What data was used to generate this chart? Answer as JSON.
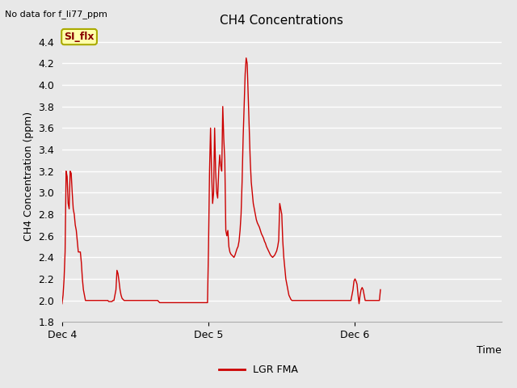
{
  "title": "CH4 Concentrations",
  "ylabel": "CH4 Concentration (ppm)",
  "xlabel": "Time",
  "top_left_text": "No data for f_li77_ppm",
  "legend_label": "LGR FMA",
  "line_color": "#cc0000",
  "background_color": "#e8e8e8",
  "ylim": [
    1.8,
    4.5
  ],
  "yticks": [
    1.8,
    2.0,
    2.2,
    2.4,
    2.6,
    2.8,
    3.0,
    3.2,
    3.4,
    3.6,
    3.8,
    4.0,
    4.2,
    4.4
  ],
  "xtick_labels": [
    "Dec 4",
    "Dec 5",
    "Dec 6"
  ],
  "xtick_positions": [
    0,
    144,
    288
  ],
  "xlim": [
    0,
    432
  ],
  "box_label": "SI_flx",
  "box_facecolor": "#ffffaa",
  "box_edgecolor": "#aaaa00",
  "box_textcolor": "#880000",
  "data_y": [
    1.97,
    2.05,
    2.2,
    2.45,
    3.2,
    3.15,
    2.9,
    2.85,
    3.2,
    3.18,
    3.0,
    2.85,
    2.8,
    2.7,
    2.65,
    2.55,
    2.45,
    2.45,
    2.45,
    2.35,
    2.2,
    2.1,
    2.05,
    2.0,
    2.0,
    2.0,
    2.0,
    2.0,
    2.0,
    2.0,
    2.0,
    2.0,
    2.0,
    2.0,
    2.0,
    2.0,
    2.0,
    2.0,
    2.0,
    2.0,
    2.0,
    2.0,
    2.0,
    2.0,
    2.0,
    2.0,
    1.99,
    1.99,
    1.99,
    1.99,
    2.0,
    2.0,
    2.05,
    2.1,
    2.28,
    2.25,
    2.18,
    2.1,
    2.05,
    2.02,
    2.01,
    2.0,
    2.0,
    2.0,
    2.0,
    2.0,
    2.0,
    2.0,
    2.0,
    2.0,
    2.0,
    2.0,
    2.0,
    2.0,
    2.0,
    2.0,
    2.0,
    2.0,
    2.0,
    2.0,
    2.0,
    2.0,
    2.0,
    2.0,
    2.0,
    2.0,
    2.0,
    2.0,
    2.0,
    2.0,
    2.0,
    2.0,
    2.0,
    2.0,
    2.0,
    1.99,
    1.98,
    1.98,
    1.98,
    1.98,
    1.98,
    1.98,
    1.98,
    1.98,
    1.98,
    1.98,
    1.98,
    1.98,
    1.98,
    1.98,
    1.98,
    1.98,
    1.98,
    1.98,
    1.98,
    1.98,
    1.98,
    1.98,
    1.98,
    1.98,
    1.98,
    1.98,
    1.98,
    1.98,
    1.98,
    1.98,
    1.98,
    1.98,
    1.98,
    1.98,
    1.98,
    1.98,
    1.98,
    1.98,
    1.98,
    1.98,
    1.98,
    1.98,
    1.98,
    1.98,
    1.98,
    1.98,
    1.98,
    1.98,
    2.5,
    3.2,
    3.6,
    3.2,
    2.9,
    3.0,
    3.6,
    3.2,
    3.0,
    2.95,
    3.2,
    3.35,
    3.25,
    3.2,
    3.8,
    3.5,
    3.3,
    2.65,
    2.6,
    2.65,
    2.5,
    2.45,
    2.43,
    2.42,
    2.41,
    2.4,
    2.42,
    2.45,
    2.48,
    2.5,
    2.55,
    2.65,
    2.8,
    3.1,
    3.5,
    3.8,
    4.1,
    4.25,
    4.2,
    3.9,
    3.6,
    3.3,
    3.1,
    3.0,
    2.9,
    2.85,
    2.8,
    2.75,
    2.72,
    2.7,
    2.68,
    2.65,
    2.62,
    2.6,
    2.58,
    2.55,
    2.53,
    2.5,
    2.48,
    2.46,
    2.44,
    2.42,
    2.41,
    2.4,
    2.41,
    2.42,
    2.44,
    2.46,
    2.5,
    2.56,
    2.9,
    2.85,
    2.8,
    2.55,
    2.4,
    2.3,
    2.2,
    2.15,
    2.1,
    2.05,
    2.03,
    2.01,
    2.0,
    2.0,
    2.0,
    2.0,
    2.0,
    2.0,
    2.0,
    2.0,
    2.0,
    2.0,
    2.0,
    2.0,
    2.0,
    2.0,
    2.0,
    2.0,
    2.0,
    2.0,
    2.0,
    2.0,
    2.0,
    2.0,
    2.0,
    2.0,
    2.0,
    2.0,
    2.0,
    2.0,
    2.0,
    2.0,
    2.0,
    2.0,
    2.0,
    2.0,
    2.0,
    2.0,
    2.0,
    2.0,
    2.0,
    2.0,
    2.0,
    2.0,
    2.0,
    2.0,
    2.0,
    2.0,
    2.0,
    2.0,
    2.0,
    2.0,
    2.0,
    2.0,
    2.0,
    2.0,
    2.0,
    2.0,
    2.0,
    2.0,
    2.0,
    2.05,
    2.1,
    2.18,
    2.2,
    2.18,
    2.15,
    2.05,
    1.97,
    2.05,
    2.1,
    2.12,
    2.1,
    2.05,
    2.0,
    2.0,
    2.0,
    2.0,
    2.0,
    2.0,
    2.0,
    2.0,
    2.0,
    2.0,
    2.0,
    2.0,
    2.0,
    2.0,
    2.0,
    2.1
  ]
}
